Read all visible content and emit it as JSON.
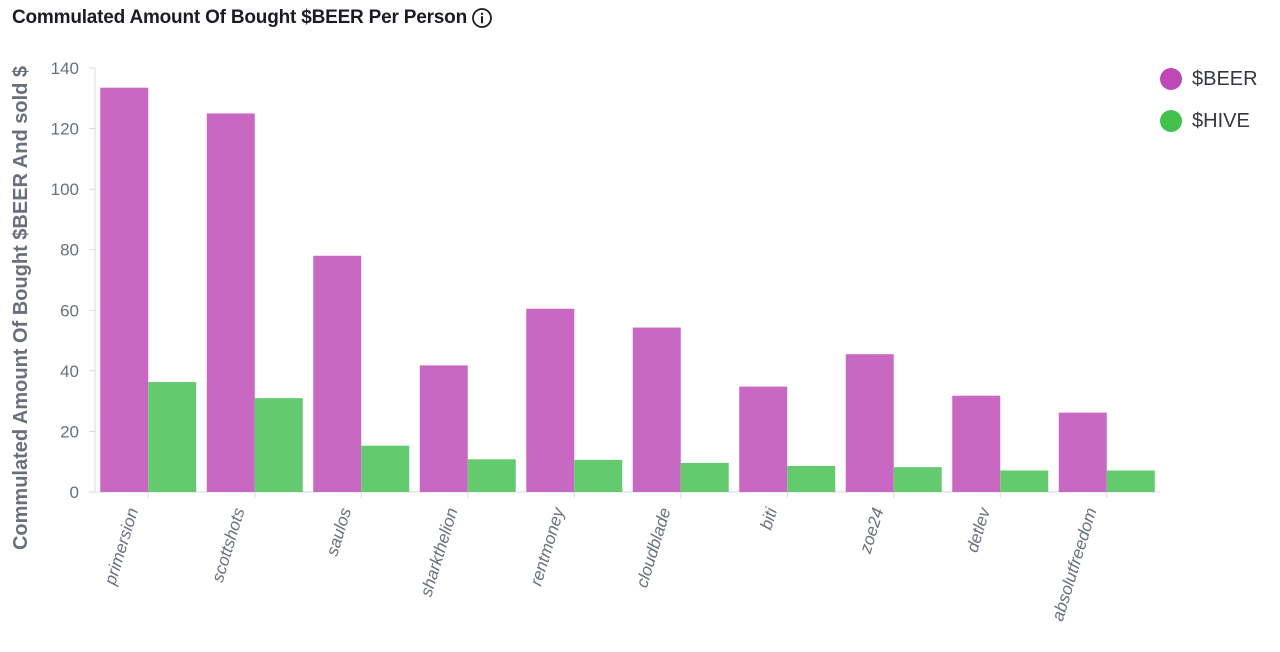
{
  "panel": {
    "title": "Commulated Amount Of Bought $BEER Per Person"
  },
  "icons": {
    "info": "info-icon"
  },
  "colors": {
    "beer": "#c968c2",
    "hive": "#63cb6e",
    "beer_legend": "#be48b8",
    "hive_legend": "#42c04c",
    "axis": "#d3dae6",
    "text": "#69707d"
  },
  "chart_data": {
    "type": "bar",
    "title": "Commulated Amount Of Bought $BEER Per Person",
    "ylabel": "Commulated Amount Of Bought $BEER And sold $",
    "xlabel": "",
    "ylim": [
      0,
      140
    ],
    "yticks": [
      0,
      20,
      40,
      60,
      80,
      100,
      120,
      140
    ],
    "grid": false,
    "legend_position": "top-right",
    "categories": [
      "primersion",
      "scottshots",
      "saulos",
      "sharkthelion",
      "rentmoney",
      "cloudblade",
      "biti",
      "zoe24",
      "detlev",
      "absolutfreedom"
    ],
    "series": [
      {
        "name": "$BEER",
        "color": "#c968c2",
        "values": [
          133.5,
          125,
          78,
          41.8,
          60.5,
          54.3,
          34.8,
          45.5,
          31.8,
          26.2
        ]
      },
      {
        "name": "$HIVE",
        "color": "#63cb6e",
        "values": [
          36.3,
          31,
          15.3,
          10.8,
          10.6,
          9.6,
          8.6,
          8.2,
          7.1,
          7.1
        ]
      }
    ]
  }
}
